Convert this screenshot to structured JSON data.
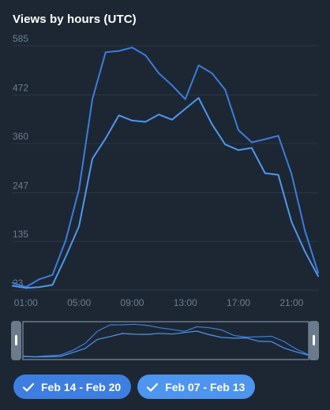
{
  "title": "Views by hours (UTC)",
  "colors": {
    "background": "#1d2733",
    "grid": "#2c3846",
    "axis_text": "#6d7d8e",
    "series1": "#3b7ddd",
    "series2": "#4e97f0",
    "navigator_border": "#6b7b8c"
  },
  "chart_data": {
    "type": "line",
    "title": "Views by hours (UTC)",
    "x": [
      "00:00",
      "01:00",
      "02:00",
      "03:00",
      "04:00",
      "05:00",
      "06:00",
      "07:00",
      "08:00",
      "09:00",
      "10:00",
      "11:00",
      "12:00",
      "13:00",
      "14:00",
      "15:00",
      "16:00",
      "17:00",
      "18:00",
      "19:00",
      "20:00",
      "21:00",
      "22:00",
      "23:00"
    ],
    "x_tick_labels": [
      "01:00",
      "05:00",
      "09:00",
      "13:00",
      "17:00",
      "21:00"
    ],
    "y_tick_labels": [
      "23",
      "135",
      "247",
      "360",
      "472",
      "585"
    ],
    "ylim": [
      23,
      585
    ],
    "grid": true,
    "series": [
      {
        "name": "Feb 14 - Feb 20",
        "color": "#3b7ddd",
        "values": [
          40,
          30,
          48,
          58,
          138,
          255,
          462,
          570,
          573,
          581,
          563,
          522,
          494,
          462,
          540,
          522,
          484,
          391,
          363,
          370,
          378,
          290,
          160,
          63
        ]
      },
      {
        "name": "Feb 07 - Feb 13",
        "color": "#4e97f0",
        "values": [
          33,
          28,
          30,
          35,
          100,
          170,
          325,
          372,
          425,
          413,
          410,
          427,
          415,
          440,
          465,
          405,
          358,
          345,
          350,
          292,
          288,
          180,
          112,
          55
        ]
      }
    ]
  },
  "legend": {
    "items": [
      {
        "label": "Feb 14 - Feb 20"
      },
      {
        "label": "Feb 07 - Feb 13"
      }
    ]
  }
}
